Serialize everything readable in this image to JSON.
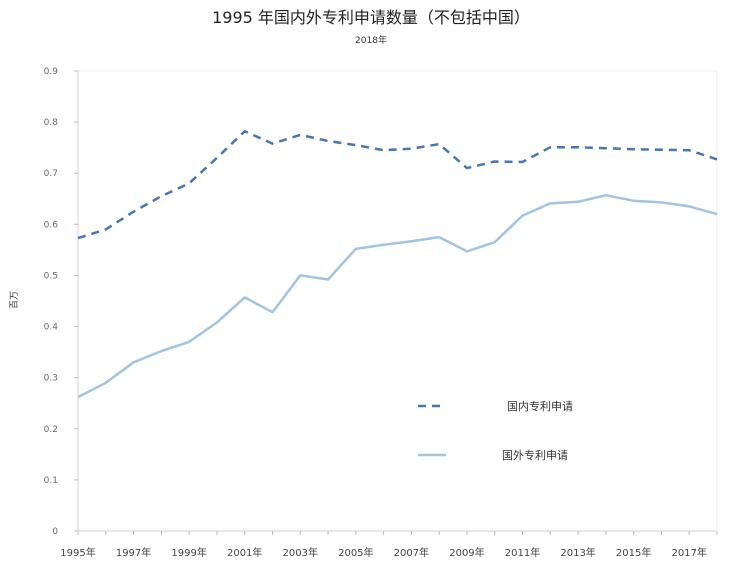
{
  "chart_data": {
    "type": "line",
    "title": "1995 年国内外专利申请数量（不包括中国）",
    "subtitle": "2018年",
    "ylabel": "百万",
    "xlabel": "",
    "ylim": [
      0,
      0.9
    ],
    "xlim": [
      1995,
      2018
    ],
    "y_ticks": [
      "0",
      "0.1",
      "0.2",
      "0.3",
      "0.4",
      "0.5",
      "0.6",
      "0.7",
      "0.8",
      "0.9"
    ],
    "x_tick_labels": [
      "1995年",
      "1997年",
      "1999年",
      "2001年",
      "2003年",
      "2005年",
      "2007年",
      "2009年",
      "2011年",
      "2013年",
      "2015年",
      "2017年"
    ],
    "x": [
      1995,
      1996,
      1997,
      1998,
      1999,
      2000,
      2001,
      2002,
      2003,
      2004,
      2005,
      2006,
      2007,
      2008,
      2009,
      2010,
      2011,
      2012,
      2013,
      2014,
      2015,
      2016,
      2017,
      2018
    ],
    "grid": false,
    "legend_position": "bottom-right",
    "series": [
      {
        "name": "国内专利申请",
        "style": "dashed",
        "color": "#4a76a8",
        "values": [
          0.573,
          0.59,
          0.625,
          0.655,
          0.68,
          0.73,
          0.782,
          0.758,
          0.775,
          0.763,
          0.755,
          0.745,
          0.748,
          0.757,
          0.71,
          0.723,
          0.722,
          0.751,
          0.751,
          0.749,
          0.747,
          0.746,
          0.745,
          0.727
        ]
      },
      {
        "name": "国外专利申请",
        "style": "solid",
        "color": "#a3c4dc",
        "values": [
          0.262,
          0.29,
          0.33,
          0.352,
          0.37,
          0.408,
          0.457,
          0.428,
          0.5,
          0.492,
          0.552,
          0.56,
          0.567,
          0.575,
          0.547,
          0.565,
          0.617,
          0.641,
          0.644,
          0.657,
          0.646,
          0.643,
          0.635,
          0.62
        ]
      }
    ]
  }
}
